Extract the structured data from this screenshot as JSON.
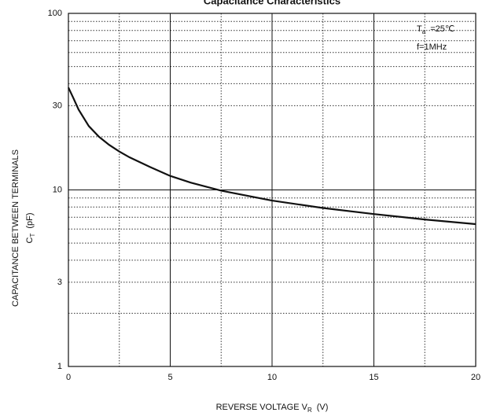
{
  "chart_data": {
    "type": "line",
    "title": "Capacitance Characteristics",
    "xlabel": {
      "main": "REVERSE VOLTAGE  V",
      "sub": "R",
      "after": "(V)"
    },
    "ylabel": {
      "line1": "CAPACITANCE BETWEEN TERMINALS",
      "main": "C",
      "sub": "T",
      "after": "(pF)"
    },
    "annotations": [
      {
        "main": "T",
        "sub": "a",
        "after": "=25℃"
      },
      {
        "main": "f=1MHz"
      }
    ],
    "x": [
      0,
      0.25,
      0.5,
      1,
      1.5,
      2,
      2.5,
      3,
      4,
      5,
      6,
      7.5,
      10,
      12.5,
      15,
      17.5,
      20
    ],
    "series": [
      {
        "color": "#111111",
        "values": [
          38,
          33,
          28.5,
          23,
          20,
          18,
          16.5,
          15.3,
          13.5,
          12,
          11,
          9.9,
          8.7,
          7.9,
          7.3,
          6.8,
          6.4
        ]
      }
    ],
    "xlim": [
      0,
      20
    ],
    "xticks": [
      0,
      5,
      10,
      15,
      20
    ],
    "x_minor_grid": [
      2.5,
      7.5,
      12.5,
      17.5
    ],
    "ylim": [
      1,
      100
    ],
    "yticks": [
      1,
      3,
      10,
      30,
      100
    ],
    "y_minor_grid": [
      2,
      4,
      5,
      6,
      7,
      8,
      9,
      20,
      40,
      50,
      60,
      70,
      80,
      90
    ],
    "ylog": true,
    "grid": true
  }
}
